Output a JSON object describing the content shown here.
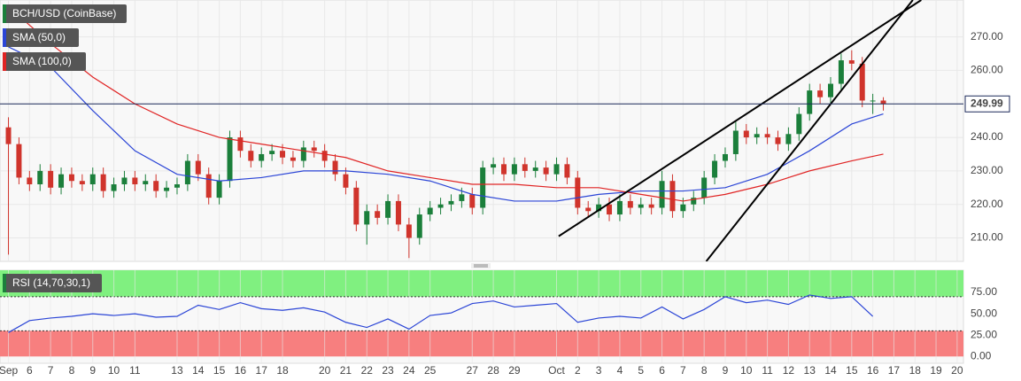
{
  "chart_data": [
    {
      "type": "candlestick",
      "title": "BCH/USD (CoinBase)",
      "x": [
        0,
        0.5,
        1,
        1.5,
        2,
        2.5,
        3,
        3.5,
        4,
        4.5,
        5,
        5.5,
        6,
        6.5,
        7,
        7.5,
        8,
        8.5,
        9,
        9.5,
        10,
        10.5,
        11,
        11.5,
        12,
        12.5,
        13,
        13.5,
        14,
        14.5,
        15,
        15.5,
        16,
        16.5,
        17,
        17.5,
        18,
        18.5,
        19,
        19.5,
        20,
        20.5,
        21,
        21.5,
        22,
        22.5,
        23,
        23.5,
        24,
        24.5,
        25,
        25.5,
        26,
        26.5,
        27,
        27.5,
        28,
        28.5,
        29,
        29.5,
        30,
        30.5,
        31,
        31.5,
        32,
        32.5,
        33,
        33.5,
        34,
        34.5,
        35,
        35.5,
        36,
        36.5,
        37,
        37.5,
        38,
        38.5,
        39,
        39.5,
        40,
        40.5,
        41,
        41.5
      ],
      "open": [
        243,
        238,
        228,
        226,
        230,
        225,
        229,
        227,
        226,
        229,
        224,
        226,
        228,
        226,
        227,
        224,
        225,
        226,
        233,
        229,
        222,
        227,
        240,
        236,
        233,
        235,
        236,
        234,
        233,
        237,
        236,
        233,
        229,
        225,
        214,
        218,
        216,
        221,
        214,
        210,
        217,
        219,
        220,
        221,
        223,
        219,
        231,
        232,
        229,
        232,
        230,
        231,
        229,
        232,
        228,
        219,
        218,
        220,
        217,
        221,
        219,
        220,
        219,
        227,
        218,
        220,
        222,
        228,
        233,
        235,
        242,
        240,
        241,
        240,
        238,
        241,
        247,
        254,
        252,
        256,
        263,
        262,
        251,
        251
      ],
      "high": [
        246,
        240,
        230,
        232,
        232,
        231,
        231,
        229,
        231,
        231,
        228,
        230,
        230,
        229,
        229,
        227,
        228,
        235,
        235,
        231,
        229,
        242,
        242,
        238,
        237,
        238,
        238,
        236,
        239,
        239,
        238,
        235,
        231,
        227,
        220,
        220,
        223,
        223,
        216,
        219,
        221,
        222,
        223,
        225,
        225,
        233,
        234,
        234,
        234,
        234,
        233,
        233,
        234,
        234,
        230,
        221,
        222,
        222,
        223,
        223,
        222,
        222,
        230,
        229,
        222,
        224,
        230,
        235,
        237,
        245,
        244,
        243,
        243,
        242,
        243,
        249,
        256,
        256,
        258,
        265,
        266,
        264,
        253,
        252
      ],
      "low": [
        205,
        226,
        224,
        224,
        223,
        223,
        225,
        224,
        224,
        222,
        222,
        224,
        224,
        224,
        222,
        222,
        223,
        224,
        227,
        220,
        220,
        225,
        234,
        231,
        231,
        233,
        232,
        231,
        231,
        234,
        231,
        227,
        223,
        212,
        208,
        214,
        214,
        212,
        204,
        208,
        215,
        217,
        218,
        219,
        217,
        217,
        229,
        227,
        227,
        228,
        228,
        227,
        227,
        226,
        217,
        216,
        216,
        215,
        215,
        217,
        217,
        217,
        217,
        216,
        216,
        218,
        220,
        226,
        231,
        233,
        238,
        238,
        238,
        236,
        236,
        239,
        245,
        250,
        250,
        254,
        260,
        249,
        247,
        248
      ],
      "close": [
        238,
        228,
        226,
        230,
        225,
        229,
        227,
        226,
        229,
        224,
        226,
        228,
        226,
        227,
        224,
        225,
        226,
        233,
        229,
        222,
        227,
        240,
        236,
        233,
        235,
        236,
        234,
        233,
        237,
        236,
        233,
        229,
        225,
        214,
        218,
        216,
        221,
        214,
        210,
        217,
        219,
        220,
        221,
        223,
        219,
        231,
        232,
        229,
        232,
        230,
        231,
        229,
        232,
        228,
        219,
        218,
        220,
        217,
        221,
        219,
        220,
        219,
        227,
        218,
        220,
        222,
        228,
        233,
        235,
        242,
        240,
        241,
        240,
        238,
        241,
        247,
        254,
        252,
        256,
        263,
        262,
        251,
        251,
        250
      ],
      "up_color": "#1b7f3b",
      "down_color": "#d0342c",
      "series": [
        {
          "name": "SMA (50,0)",
          "color": "#2b45d6",
          "x": [
            0,
            2,
            4,
            6,
            8,
            10,
            12,
            14,
            16,
            18,
            20,
            22,
            24,
            26,
            28,
            30,
            32,
            34,
            36,
            38,
            40,
            41.5
          ],
          "values": [
            267,
            261,
            248,
            236,
            229,
            227,
            228,
            230,
            230,
            229,
            227,
            223,
            221,
            221,
            223,
            224,
            224,
            225,
            229,
            236,
            244,
            247
          ]
        },
        {
          "name": "SMA (100,0)",
          "color": "#e02424",
          "x": [
            0,
            2,
            4,
            6,
            8,
            10,
            12,
            14,
            16,
            18,
            20,
            22,
            24,
            26,
            28,
            30,
            32,
            34,
            36,
            38,
            40,
            41.5
          ],
          "values": [
            279,
            268,
            258,
            250,
            244,
            240,
            238,
            236,
            234,
            230,
            228,
            226,
            226,
            225,
            225,
            223,
            221,
            223,
            226,
            230,
            233,
            235
          ]
        }
      ],
      "trendlines": [
        {
          "x": [
            26.1,
            43.3
          ],
          "y": [
            210.5,
            281
          ]
        },
        {
          "x": [
            33.1,
            42.9
          ],
          "y": [
            203,
            281
          ]
        }
      ],
      "last_price": 249.99,
      "xlim": [
        -0.4,
        45.3
      ],
      "ylim": [
        203,
        281
      ],
      "yticks": [
        {
          "value": 210,
          "label": "210.00"
        },
        {
          "value": 220,
          "label": "220.00"
        },
        {
          "value": 230,
          "label": "230.00"
        },
        {
          "value": 240,
          "label": "240.00"
        },
        {
          "value": 250,
          "label": "250.00"
        },
        {
          "value": 260,
          "label": "260.00"
        },
        {
          "value": 270,
          "label": "270.00"
        }
      ],
      "grid": true
    },
    {
      "type": "line",
      "series": [
        {
          "name": "RSI (14,70,30,1)",
          "color": "#2b45d6",
          "x": [
            0,
            1,
            2,
            3,
            4,
            5,
            6,
            7,
            8,
            9,
            10,
            11,
            12,
            13,
            14,
            15,
            16,
            17,
            18,
            19,
            20,
            21,
            22,
            23,
            24,
            25,
            26,
            27,
            28,
            29,
            30,
            31,
            32,
            33,
            34,
            35,
            36,
            37,
            38,
            39,
            40,
            41
          ],
          "values": [
            28,
            42,
            45,
            47,
            50,
            48,
            50,
            46,
            47,
            60,
            55,
            63,
            56,
            54,
            57,
            52,
            40,
            34,
            44,
            32,
            48,
            51,
            62,
            65,
            58,
            60,
            62,
            40,
            45,
            47,
            45,
            58,
            44,
            55,
            70,
            63,
            66,
            61,
            72,
            68,
            70,
            47
          ]
        }
      ],
      "bands": {
        "upper": 70,
        "lower": 30,
        "upper_color": "#80f080",
        "lower_color": "#f77f7f"
      },
      "xlim": [
        -0.4,
        45.3
      ],
      "ylim": [
        -8,
        101
      ],
      "yticks": [
        {
          "value": 0,
          "label": "0.00"
        },
        {
          "value": 25,
          "label": "25.00"
        },
        {
          "value": 50,
          "label": "50.00"
        },
        {
          "value": 75,
          "label": "75.00"
        }
      ],
      "xticks": [
        {
          "value": 0,
          "label": "Sep"
        },
        {
          "value": 1,
          "label": "6"
        },
        {
          "value": 2,
          "label": "7"
        },
        {
          "value": 3,
          "label": "8"
        },
        {
          "value": 4,
          "label": "9"
        },
        {
          "value": 5,
          "label": "10"
        },
        {
          "value": 6,
          "label": "11"
        },
        {
          "value": 8,
          "label": "13"
        },
        {
          "value": 9,
          "label": "14"
        },
        {
          "value": 10,
          "label": "15"
        },
        {
          "value": 11,
          "label": "16"
        },
        {
          "value": 12,
          "label": "17"
        },
        {
          "value": 13,
          "label": "18"
        },
        {
          "value": 15,
          "label": "20"
        },
        {
          "value": 16,
          "label": "21"
        },
        {
          "value": 17,
          "label": "22"
        },
        {
          "value": 18,
          "label": "23"
        },
        {
          "value": 19,
          "label": "24"
        },
        {
          "value": 20,
          "label": "25"
        },
        {
          "value": 22,
          "label": "27"
        },
        {
          "value": 23,
          "label": "28"
        },
        {
          "value": 24,
          "label": "29"
        },
        {
          "value": 26,
          "label": "Oct"
        },
        {
          "value": 27,
          "label": "2"
        },
        {
          "value": 28,
          "label": "3"
        },
        {
          "value": 29,
          "label": "4"
        },
        {
          "value": 30,
          "label": "5"
        },
        {
          "value": 31,
          "label": "6"
        },
        {
          "value": 32,
          "label": "7"
        },
        {
          "value": 33,
          "label": "8"
        },
        {
          "value": 34,
          "label": "9"
        },
        {
          "value": 35,
          "label": "10"
        },
        {
          "value": 36,
          "label": "11"
        },
        {
          "value": 37,
          "label": "12"
        },
        {
          "value": 38,
          "label": "13"
        },
        {
          "value": 39,
          "label": "14"
        },
        {
          "value": 40,
          "label": "15"
        },
        {
          "value": 41,
          "label": "16"
        },
        {
          "value": 42,
          "label": "17"
        },
        {
          "value": 43,
          "label": "18"
        },
        {
          "value": 44,
          "label": "19"
        },
        {
          "value": 45,
          "label": "20"
        }
      ],
      "grid": true
    }
  ]
}
